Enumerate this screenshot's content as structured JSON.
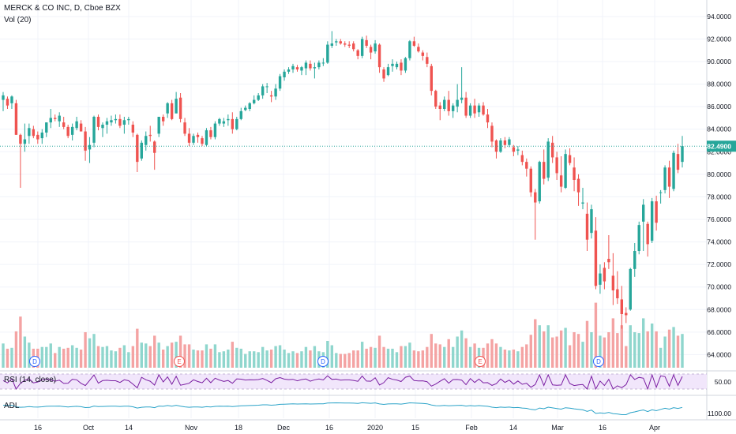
{
  "header": {
    "title": "MERCK & CO INC, D, Cboe BZX",
    "volume_label": "Vol (20)"
  },
  "indicators": {
    "rsi_label": "RSI (14, close)",
    "adl_label": "ADL",
    "rsi_level": "50.00",
    "adl_level": "1100.00"
  },
  "current_price": "82.4900",
  "colors": {
    "up": "#26a69a",
    "down": "#ef5350",
    "up_volume": "#8fd6cd",
    "down_volume": "#f4a3a3",
    "rsi_line": "#7b1fa2",
    "rsi_band": "#f1e6fb",
    "adl_line": "#2ba3c8"
  },
  "chart_data": {
    "type": "candlestick",
    "title": "MERCK & CO INC, D, Cboe BZX",
    "y_ticks": [
      "94.0000",
      "92.0000",
      "90.0000",
      "88.0000",
      "86.0000",
      "84.0000",
      "82.0000",
      "80.0000",
      "78.0000",
      "76.0000",
      "74.0000",
      "72.0000",
      "70.0000",
      "68.0000",
      "66.0000",
      "64.0000"
    ],
    "x_ticks": [
      "16",
      "Oct",
      "14",
      "Nov",
      "18",
      "Dec",
      "16",
      "2020",
      "15",
      "Feb",
      "14",
      "Mar",
      "16",
      "Apr"
    ],
    "event_markers": [
      "D",
      "E",
      "D",
      "E",
      "D"
    ],
    "series": [
      {
        "name": "price",
        "ohlc": [
          [
            86.6,
            87.3,
            85.6,
            87.0
          ],
          [
            86.7,
            86.9,
            85.8,
            86.1
          ],
          [
            86.3,
            87.0,
            85.8,
            86.9
          ],
          [
            86.3,
            86.6,
            83.5,
            83.5
          ],
          [
            83.5,
            83.6,
            78.8,
            82.7
          ],
          [
            82.7,
            84.5,
            82.0,
            83.1
          ],
          [
            83.4,
            84.5,
            82.7,
            84.1
          ],
          [
            84.0,
            84.3,
            83.2,
            83.4
          ],
          [
            83.5,
            83.8,
            82.7,
            83.1
          ],
          [
            83.2,
            84.0,
            82.7,
            83.7
          ],
          [
            83.7,
            84.6,
            83.3,
            84.6
          ],
          [
            84.6,
            85.8,
            84.1,
            85.0
          ],
          [
            85.0,
            85.3,
            84.7,
            84.9
          ],
          [
            84.7,
            85.5,
            84.2,
            85.2
          ],
          [
            84.6,
            85.1,
            84.0,
            84.2
          ],
          [
            84.2,
            84.4,
            83.2,
            83.4
          ],
          [
            83.5,
            84.5,
            83.0,
            84.2
          ],
          [
            84.1,
            85.1,
            83.9,
            84.7
          ],
          [
            84.5,
            84.8,
            83.8,
            83.8
          ],
          [
            83.8,
            84.2,
            81.2,
            82.1
          ],
          [
            82.2,
            83.3,
            81.0,
            82.6
          ],
          [
            82.8,
            85.2,
            82.4,
            85.1
          ],
          [
            85.1,
            85.3,
            83.9,
            84.2
          ],
          [
            84.1,
            84.6,
            83.3,
            84.4
          ],
          [
            84.4,
            85.0,
            83.6,
            84.7
          ],
          [
            84.6,
            85.2,
            84.3,
            84.8
          ],
          [
            84.8,
            85.3,
            84.5,
            84.9
          ],
          [
            84.9,
            85.3,
            84.1,
            84.3
          ],
          [
            84.4,
            85.1,
            83.6,
            84.8
          ],
          [
            84.8,
            85.1,
            84.4,
            84.9
          ],
          [
            84.4,
            84.7,
            83.3,
            83.7
          ],
          [
            83.5,
            83.6,
            80.2,
            81.1
          ],
          [
            81.4,
            83.0,
            81.2,
            82.8
          ],
          [
            82.6,
            83.8,
            82.1,
            83.4
          ],
          [
            83.5,
            84.3,
            82.9,
            83.4
          ],
          [
            82.9,
            83.0,
            80.4,
            81.9
          ],
          [
            83.6,
            85.1,
            83.3,
            85.1
          ],
          [
            85.1,
            85.3,
            84.3,
            84.7
          ],
          [
            85.4,
            86.4,
            85.0,
            86.3
          ],
          [
            86.3,
            86.6,
            84.8,
            84.9
          ],
          [
            85.4,
            87.3,
            85.4,
            86.7
          ],
          [
            86.8,
            87.2,
            84.6,
            84.9
          ],
          [
            84.6,
            85.0,
            83.4,
            83.6
          ],
          [
            83.6,
            84.1,
            82.5,
            82.8
          ],
          [
            82.8,
            83.6,
            82.6,
            83.4
          ],
          [
            83.5,
            83.7,
            82.8,
            83.3
          ],
          [
            83.2,
            83.4,
            82.5,
            82.7
          ],
          [
            82.6,
            84.1,
            82.5,
            83.9
          ],
          [
            83.9,
            84.2,
            83.1,
            83.3
          ],
          [
            83.3,
            84.7,
            83.1,
            84.5
          ],
          [
            84.5,
            85.0,
            84.3,
            84.9
          ],
          [
            84.5,
            85.0,
            84.2,
            84.7
          ],
          [
            84.8,
            85.3,
            84.3,
            84.9
          ],
          [
            84.9,
            85.5,
            83.6,
            84.0
          ],
          [
            84.0,
            85.1,
            83.9,
            84.9
          ],
          [
            84.9,
            85.9,
            84.8,
            85.6
          ],
          [
            85.7,
            86.1,
            85.6,
            85.9
          ],
          [
            85.8,
            86.4,
            85.6,
            86.3
          ],
          [
            86.3,
            87.0,
            86.2,
            86.6
          ],
          [
            86.6,
            87.2,
            86.5,
            87.0
          ],
          [
            87.0,
            88.0,
            86.7,
            87.8
          ],
          [
            87.8,
            88.1,
            87.2,
            87.8
          ],
          [
            87.0,
            87.4,
            86.4,
            86.9
          ],
          [
            86.9,
            88.0,
            86.6,
            87.6
          ],
          [
            87.6,
            88.9,
            87.4,
            88.7
          ],
          [
            88.6,
            89.3,
            88.3,
            89.1
          ],
          [
            89.1,
            89.5,
            88.9,
            89.3
          ],
          [
            89.3,
            89.8,
            89.0,
            89.6
          ],
          [
            89.5,
            89.7,
            89.1,
            89.3
          ],
          [
            89.2,
            89.6,
            88.8,
            89.5
          ],
          [
            89.4,
            90.1,
            88.8,
            89.9
          ],
          [
            89.8,
            90.1,
            89.2,
            89.4
          ],
          [
            89.4,
            89.9,
            88.5,
            89.5
          ],
          [
            89.5,
            90.1,
            89.3,
            89.9
          ],
          [
            89.9,
            90.3,
            89.6,
            89.9
          ],
          [
            89.9,
            91.8,
            89.8,
            91.5
          ],
          [
            91.4,
            92.7,
            91.2,
            91.6
          ],
          [
            91.7,
            92.0,
            91.4,
            91.8
          ],
          [
            91.8,
            92.0,
            91.5,
            91.6
          ],
          [
            91.6,
            91.8,
            91.3,
            91.5
          ],
          [
            91.5,
            91.8,
            91.2,
            91.4
          ],
          [
            91.6,
            91.8,
            90.9,
            91.1
          ],
          [
            91.0,
            91.1,
            90.2,
            90.5
          ],
          [
            90.5,
            92.2,
            90.3,
            92.0
          ],
          [
            91.9,
            92.3,
            91.2,
            91.4
          ],
          [
            91.3,
            91.5,
            90.2,
            90.8
          ],
          [
            90.9,
            91.9,
            90.7,
            91.6
          ],
          [
            91.5,
            91.6,
            89.0,
            89.5
          ],
          [
            89.3,
            89.5,
            88.2,
            88.5
          ],
          [
            88.8,
            89.8,
            88.7,
            89.5
          ],
          [
            89.6,
            90.2,
            89.1,
            89.8
          ],
          [
            89.5,
            90.0,
            89.3,
            89.8
          ],
          [
            89.9,
            90.2,
            88.8,
            89.2
          ],
          [
            89.2,
            90.4,
            89.0,
            90.3
          ],
          [
            90.3,
            91.9,
            90.1,
            91.8
          ],
          [
            91.8,
            92.2,
            91.3,
            91.4
          ],
          [
            91.3,
            91.6,
            90.8,
            90.9
          ],
          [
            90.8,
            91.0,
            90.1,
            90.5
          ],
          [
            90.4,
            90.8,
            89.5,
            89.8
          ],
          [
            89.6,
            89.8,
            87.0,
            87.4
          ],
          [
            87.4,
            87.5,
            85.8,
            86.0
          ],
          [
            86.1,
            86.4,
            84.8,
            85.8
          ],
          [
            85.8,
            86.9,
            85.6,
            86.6
          ],
          [
            86.6,
            87.4,
            85.2,
            85.6
          ],
          [
            85.6,
            86.3,
            85.0,
            86.1
          ],
          [
            86.0,
            88.0,
            85.5,
            86.6
          ],
          [
            86.6,
            89.5,
            86.3,
            86.8
          ],
          [
            86.8,
            87.3,
            85.0,
            85.2
          ],
          [
            85.2,
            86.3,
            85.0,
            86.1
          ],
          [
            86.1,
            86.7,
            85.0,
            85.4
          ],
          [
            85.5,
            86.3,
            85.1,
            86.1
          ],
          [
            86.1,
            86.4,
            85.2,
            85.3
          ],
          [
            85.3,
            85.8,
            84.1,
            84.6
          ],
          [
            84.3,
            84.6,
            82.4,
            82.9
          ],
          [
            83.0,
            83.1,
            81.4,
            82.0
          ],
          [
            82.0,
            83.2,
            81.9,
            83.0
          ],
          [
            83.0,
            83.3,
            82.3,
            82.6
          ],
          [
            82.6,
            83.3,
            82.4,
            83.1
          ],
          [
            82.4,
            82.6,
            81.6,
            82.0
          ],
          [
            82.1,
            82.5,
            81.7,
            82.2
          ],
          [
            81.7,
            82.1,
            80.8,
            81.1
          ],
          [
            81.1,
            81.4,
            79.8,
            80.5
          ],
          [
            80.5,
            80.7,
            78.0,
            78.4
          ],
          [
            78.4,
            78.7,
            74.2,
            77.5
          ],
          [
            77.6,
            81.2,
            77.4,
            81.1
          ],
          [
            81.1,
            82.2,
            79.1,
            79.6
          ],
          [
            79.7,
            83.2,
            79.4,
            82.9
          ],
          [
            82.8,
            83.4,
            81.0,
            81.5
          ],
          [
            81.5,
            82.0,
            79.5,
            80.1
          ],
          [
            79.9,
            81.6,
            78.4,
            78.9
          ],
          [
            78.8,
            82.2,
            78.7,
            81.8
          ],
          [
            81.7,
            82.3,
            80.8,
            81.0
          ],
          [
            80.6,
            81.5,
            78.5,
            79.5
          ],
          [
            79.6,
            80.0,
            77.2,
            78.4
          ],
          [
            77.4,
            78.8,
            76.9,
            77.5
          ],
          [
            76.5,
            77.5,
            73.2,
            74.2
          ],
          [
            74.8,
            77.3,
            74.3,
            76.9
          ],
          [
            75.0,
            76.2,
            69.8,
            70.1
          ],
          [
            70.2,
            72.0,
            69.4,
            71.2
          ],
          [
            71.7,
            72.2,
            69.8,
            70.5
          ],
          [
            72.5,
            74.6,
            71.6,
            72.2
          ],
          [
            71.0,
            73.0,
            68.4,
            69.7
          ],
          [
            69.8,
            71.4,
            68.5,
            69.0
          ],
          [
            68.9,
            70.1,
            66.3,
            67.6
          ],
          [
            67.7,
            68.2,
            66.8,
            67.5
          ],
          [
            68.0,
            71.7,
            67.9,
            71.6
          ],
          [
            71.6,
            73.9,
            70.9,
            73.2
          ],
          [
            73.2,
            75.8,
            72.9,
            75.5
          ],
          [
            75.8,
            77.8,
            73.2,
            77.3
          ],
          [
            75.6,
            75.8,
            72.7,
            73.8
          ],
          [
            74.1,
            77.9,
            73.9,
            77.6
          ],
          [
            77.6,
            78.1,
            75.0,
            75.7
          ],
          [
            78.4,
            78.6,
            77.4,
            78.4
          ],
          [
            78.6,
            80.8,
            78.3,
            80.6
          ],
          [
            80.6,
            81.2,
            77.9,
            78.9
          ],
          [
            78.7,
            82.1,
            78.5,
            81.9
          ],
          [
            81.8,
            82.7,
            80.1,
            80.4
          ],
          [
            81.1,
            83.4,
            80.6,
            82.5
          ]
        ]
      }
    ],
    "volume_ylim": [
      0,
      1
    ],
    "price_ylim": [
      62.84,
      94.9
    ]
  }
}
